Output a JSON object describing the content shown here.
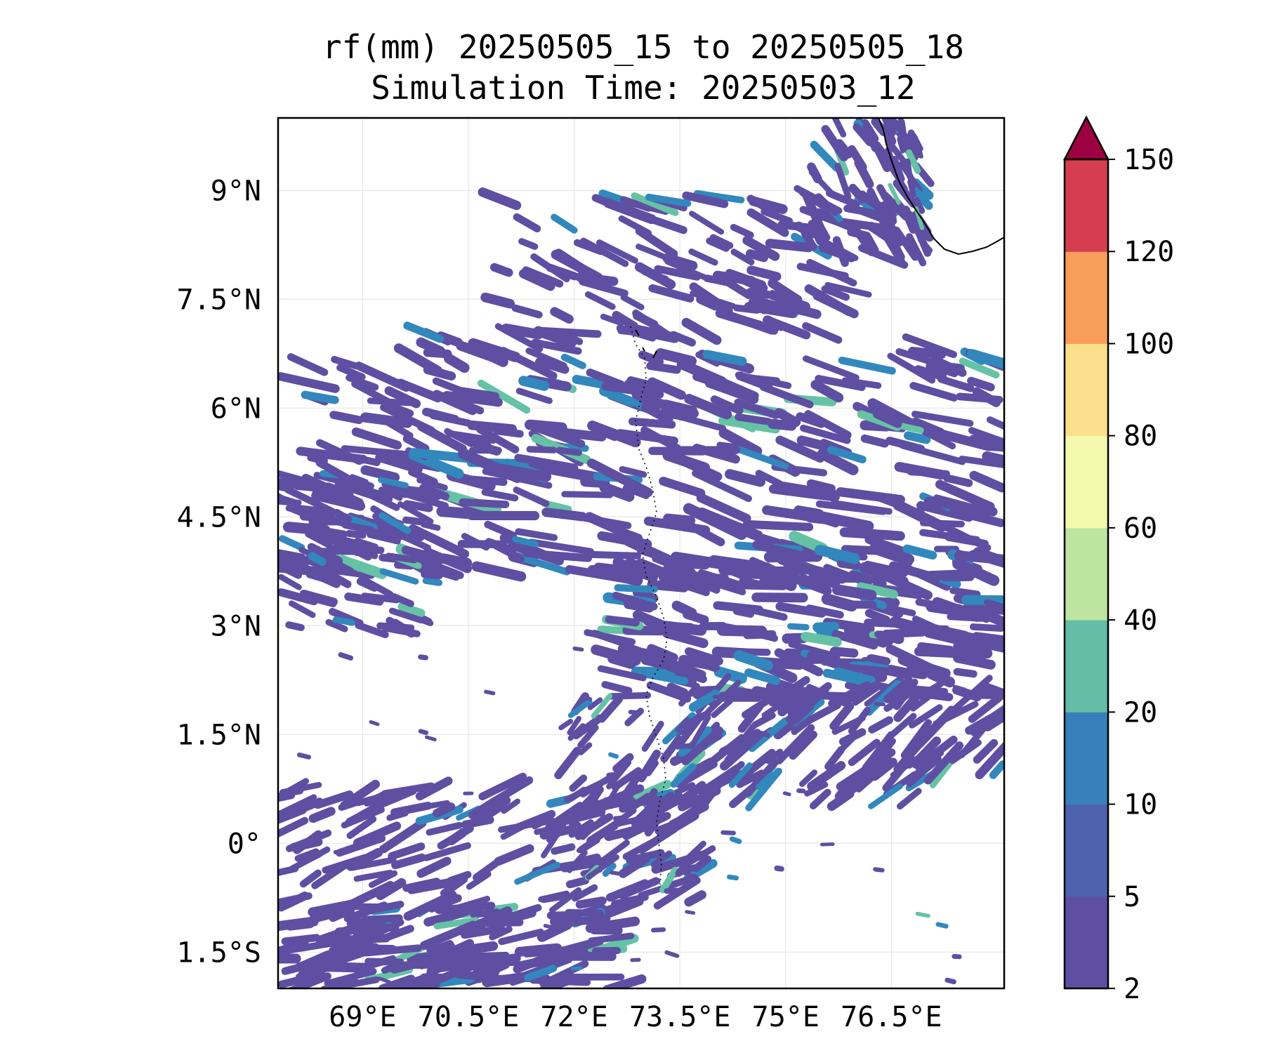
{
  "title_line1": "rf(mm) 20250505_15 to 20250505_18",
  "title_line2": "Simulation Time: 20250503_12",
  "map": {
    "lon_range": [
      67.8,
      78.1
    ],
    "lat_range": [
      -2.0,
      10.0
    ],
    "lon_ticks": [
      {
        "value": 69.0,
        "label": "69°E"
      },
      {
        "value": 70.5,
        "label": "70.5°E"
      },
      {
        "value": 72.0,
        "label": "72°E"
      },
      {
        "value": 73.5,
        "label": "73.5°E"
      },
      {
        "value": 75.0,
        "label": "75°E"
      },
      {
        "value": 76.5,
        "label": "76.5°E"
      }
    ],
    "lat_ticks": [
      {
        "value": 9.0,
        "label": "9°N"
      },
      {
        "value": 7.5,
        "label": "7.5°N"
      },
      {
        "value": 6.0,
        "label": "6°N"
      },
      {
        "value": 4.5,
        "label": "4.5°N"
      },
      {
        "value": 3.0,
        "label": "3°N"
      },
      {
        "value": 1.5,
        "label": "1.5°N"
      },
      {
        "value": 0.0,
        "label": "0°"
      },
      {
        "value": -1.5,
        "label": "1.5°S"
      }
    ],
    "gridlines": true,
    "field_colors": {
      "low": "#5e4fa2",
      "mid": "#3288bd",
      "high": "#66c2a5"
    }
  },
  "colorbar": {
    "levels": [
      2,
      5,
      10,
      20,
      40,
      60,
      80,
      100,
      120,
      150
    ],
    "labels": [
      "2",
      "5",
      "10",
      "20",
      "40",
      "60",
      "80",
      "100",
      "120",
      "150"
    ],
    "colors": [
      "#5e4fa2",
      "#4e62ad",
      "#3880bb",
      "#62bca6",
      "#bde4a0",
      "#f4faad",
      "#fbdf8c",
      "#f89e5a",
      "#d53e4f"
    ],
    "extend_color": "#9e0142",
    "extend": "max"
  }
}
